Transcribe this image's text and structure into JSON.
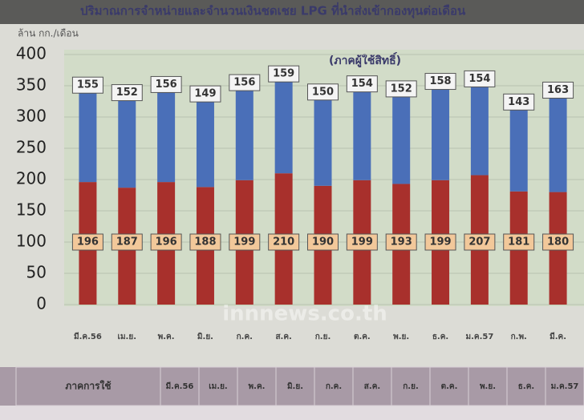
{
  "chart_data": {
    "type": "stacked_bar",
    "title": "ปริมาณการจำหน่ายและจำนวนเงินชดเชย LPG ที่นำส่งเข้ากองทุนต่อเดือน",
    "subtitle": "(ภาคผู้ใช้สิทธิ์)",
    "y_label": "ล้าน กก./เดือน",
    "watermark": "innnews.co.th",
    "categories": [
      "มี.ค.56",
      "เม.ย.",
      "พ.ค.",
      "มิ.ย.",
      "ก.ค.",
      "ส.ค.",
      "ก.ย.",
      "ต.ค.",
      "พ.ย.",
      "ธ.ค.",
      "ม.ค.57",
      "ก.พ.",
      "มี.ค."
    ],
    "series": [
      {
        "color": "#a8302c",
        "label_fill": "#f2c89a",
        "values": [
          196,
          187,
          196,
          188,
          199,
          210,
          190,
          199,
          193,
          199,
          207,
          181,
          180
        ]
      },
      {
        "color": "#4a6fb8",
        "label_fill": "#f4f4f4",
        "values": [
          155,
          152,
          156,
          149,
          156,
          159,
          150,
          154,
          152,
          158,
          154,
          143,
          163
        ]
      }
    ],
    "ylim": [
      0,
      400
    ],
    "yticks": [
      0,
      50,
      100,
      150,
      200,
      250,
      300,
      350,
      400
    ],
    "grid": true
  },
  "table": {
    "header": [
      "ภาคการใช้",
      "มี.ค.56",
      "เม.ย.",
      "พ.ค.",
      "มิ.ย.",
      "ก.ค.",
      "ส.ค.",
      "ก.ย.",
      "ต.ค.",
      "พ.ย.",
      "ธ.ค.",
      "ม.ค.57"
    ]
  }
}
